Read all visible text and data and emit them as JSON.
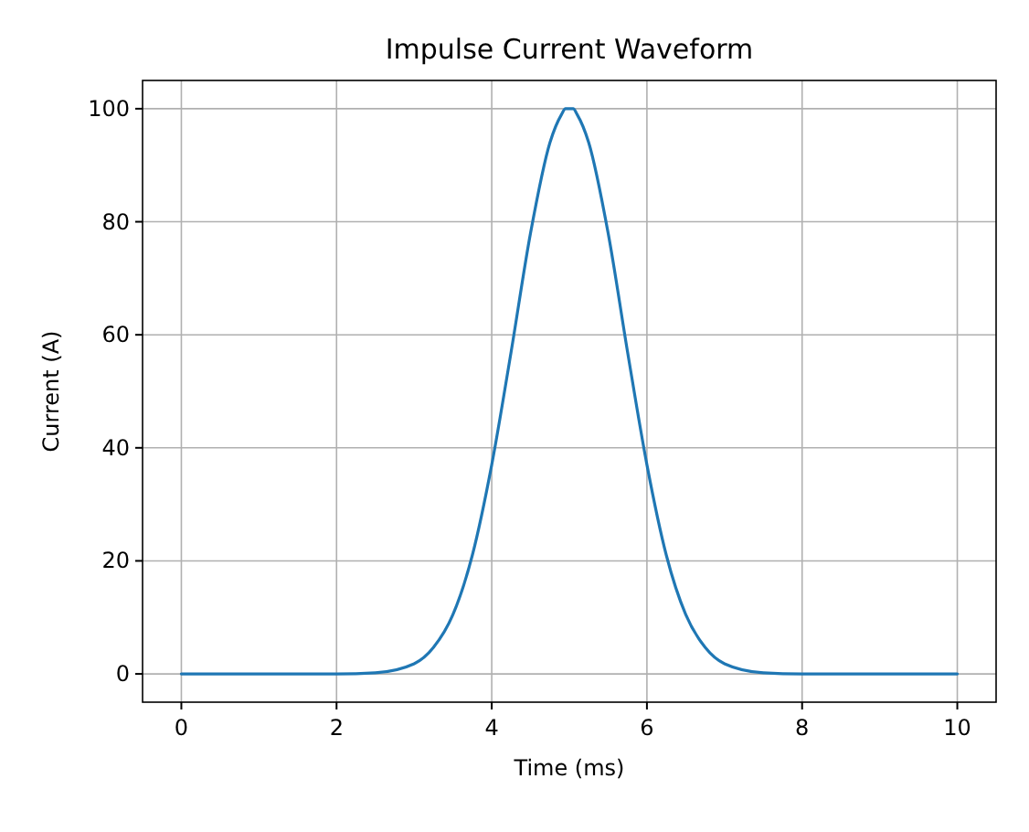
{
  "chart_data": {
    "type": "line",
    "title": "Impulse Current Waveform",
    "xlabel": "Time (ms)",
    "ylabel": "Current (A)",
    "x": [
      0,
      1,
      2,
      2.5,
      3,
      3.25,
      3.5,
      3.75,
      4,
      4.25,
      4.5,
      4.75,
      4.9,
      4.95,
      5.05,
      5.1,
      5.25,
      5.5,
      5.75,
      6,
      6.25,
      6.5,
      6.75,
      7,
      7.5,
      8,
      9,
      10
    ],
    "series": [
      {
        "color": "#1f77b4",
        "values": [
          0,
          0,
          0,
          0.2,
          1.8,
          4.7,
          10.5,
          21,
          37,
          57,
          78,
          94,
          99,
          100,
          100,
          99,
          94,
          78,
          57,
          37,
          21,
          10.5,
          4.7,
          1.8,
          0.2,
          0,
          0,
          0
        ]
      }
    ],
    "xlim": [
      -0.5,
      10.5
    ],
    "ylim": [
      -5,
      105
    ],
    "xticks": [
      0,
      2,
      4,
      6,
      8,
      10
    ],
    "yticks": [
      0,
      20,
      40,
      60,
      80,
      100
    ],
    "grid": true,
    "marker": "none",
    "line_style": "solid"
  }
}
